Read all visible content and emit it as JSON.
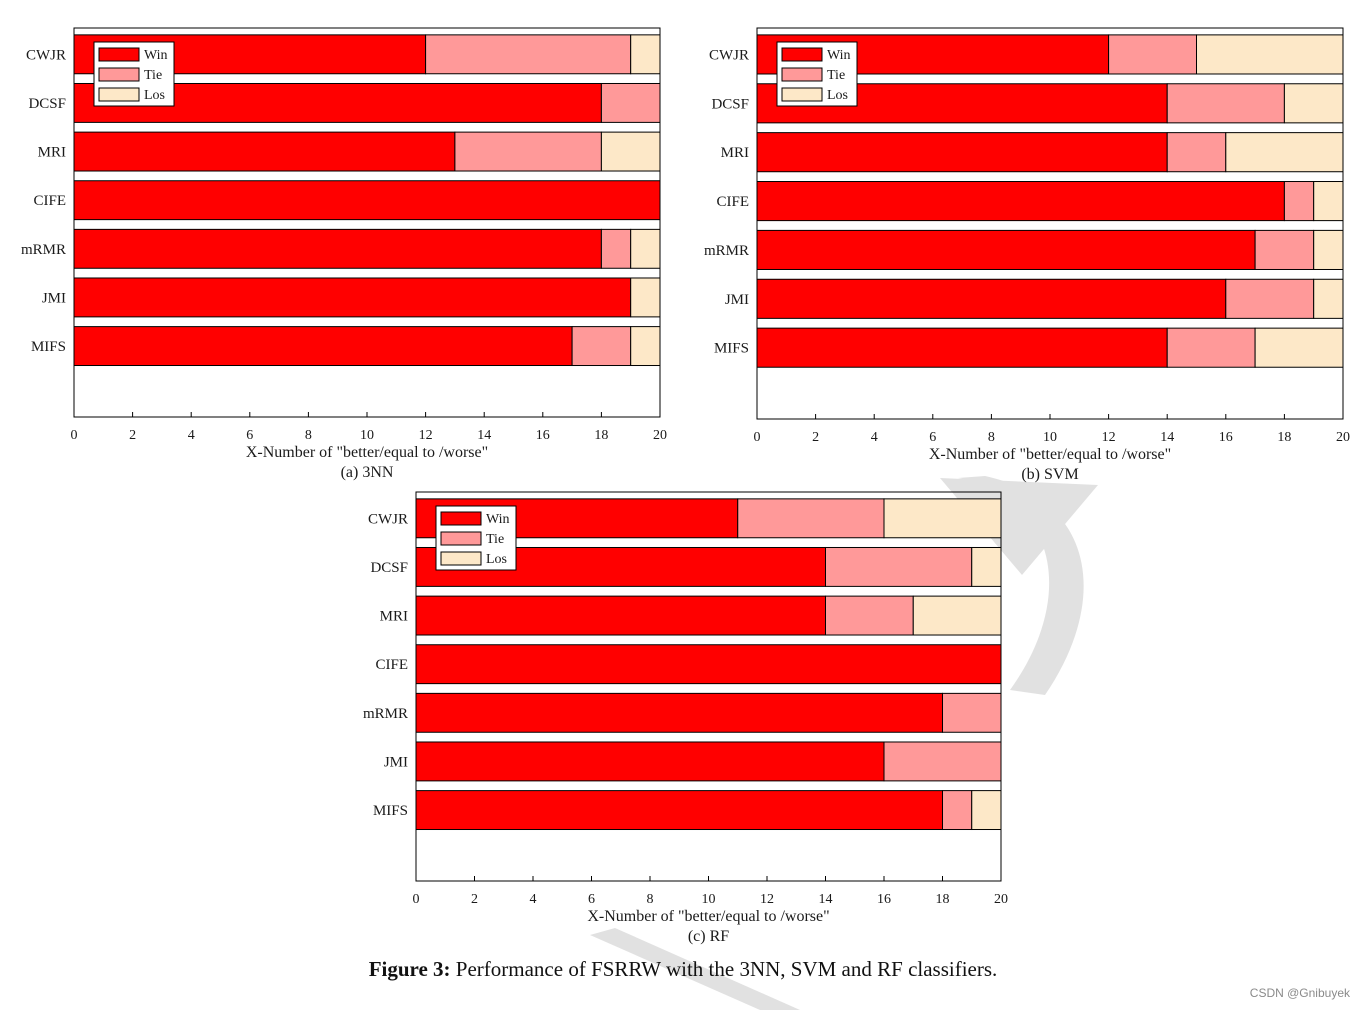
{
  "caption": {
    "label": "Figure 3:",
    "text": "Performance of FSRRW with the 3NN, SVM and RF classifiers."
  },
  "watermark": "CSDN @Gnibuyek",
  "colors": {
    "win": "#ff0000",
    "tie": "#ff9999",
    "los": "#fde8c8",
    "axis": "#000000"
  },
  "chart_data": [
    {
      "type": "bar",
      "orientation": "horizontal",
      "stacked": true,
      "subtitle": "(a) 3NN",
      "xlabel": "X-Number of  \"better/equal to /worse\"",
      "ylabel": "",
      "xlim": [
        0,
        20
      ],
      "xticks": [
        0,
        2,
        4,
        6,
        8,
        10,
        12,
        14,
        16,
        18,
        20
      ],
      "legend_location": "top-left",
      "categories": [
        "CWJR",
        "DCSF",
        "MRI",
        "CIFE",
        "mRMR",
        "JMI",
        "MIFS"
      ],
      "series": [
        {
          "name": "Win",
          "values": [
            12,
            18,
            13,
            20,
            18,
            19,
            17
          ]
        },
        {
          "name": "Tie",
          "values": [
            7,
            2,
            5,
            0,
            1,
            0,
            2
          ]
        },
        {
          "name": "Los",
          "values": [
            1,
            0,
            2,
            0,
            1,
            1,
            1
          ]
        }
      ]
    },
    {
      "type": "bar",
      "orientation": "horizontal",
      "stacked": true,
      "subtitle": "(b) SVM",
      "xlabel": "X-Number of  \"better/equal to /worse\"",
      "ylabel": "",
      "xlim": [
        0,
        20
      ],
      "xticks": [
        0,
        2,
        4,
        6,
        8,
        10,
        12,
        14,
        16,
        18,
        20
      ],
      "legend_location": "top-left",
      "categories": [
        "CWJR",
        "DCSF",
        "MRI",
        "CIFE",
        "mRMR",
        "JMI",
        "MIFS"
      ],
      "series": [
        {
          "name": "Win",
          "values": [
            12,
            14,
            14,
            18,
            17,
            16,
            14
          ]
        },
        {
          "name": "Tie",
          "values": [
            3,
            4,
            2,
            1,
            2,
            3,
            3
          ]
        },
        {
          "name": "Los",
          "values": [
            5,
            2,
            4,
            1,
            1,
            1,
            3
          ]
        }
      ]
    },
    {
      "type": "bar",
      "orientation": "horizontal",
      "stacked": true,
      "subtitle": "(c) RF",
      "xlabel": "X-Number of  \"better/equal to /worse\"",
      "ylabel": "",
      "xlim": [
        0,
        20
      ],
      "xticks": [
        0,
        2,
        4,
        6,
        8,
        10,
        12,
        14,
        16,
        18,
        20
      ],
      "legend_location": "top-left",
      "categories": [
        "CWJR",
        "DCSF",
        "MRI",
        "CIFE",
        "mRMR",
        "JMI",
        "MIFS"
      ],
      "series": [
        {
          "name": "Win",
          "values": [
            11,
            14,
            14,
            20,
            18,
            16,
            18
          ]
        },
        {
          "name": "Tie",
          "values": [
            5,
            5,
            3,
            0,
            2,
            4,
            1
          ]
        },
        {
          "name": "Los",
          "values": [
            4,
            1,
            3,
            0,
            0,
            0,
            1
          ]
        }
      ]
    }
  ]
}
